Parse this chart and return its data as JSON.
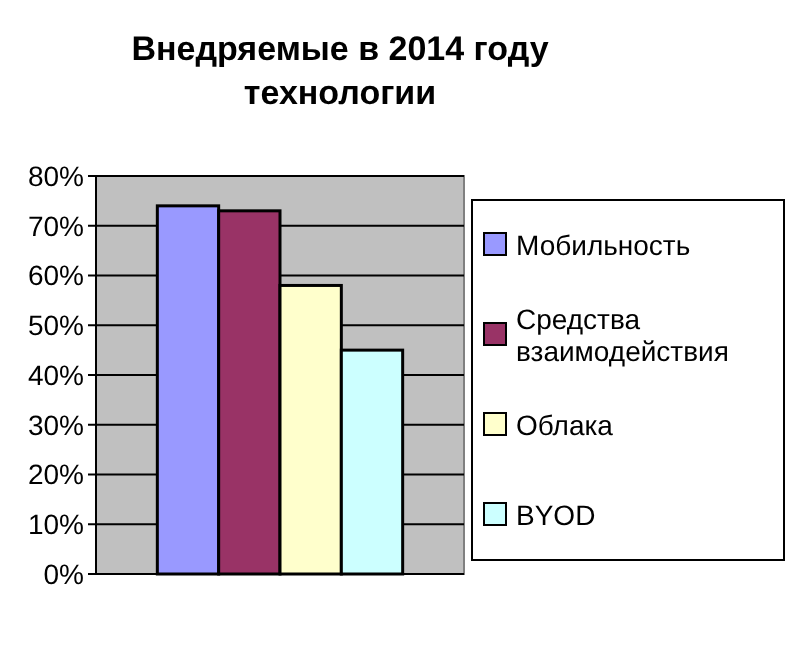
{
  "chart_data": {
    "type": "bar",
    "title": "Внедряемые в 2014 году технологии",
    "categories": [
      null
    ],
    "series": [
      {
        "name": "Мобильность",
        "color": "#9999ff",
        "values": [
          74
        ]
      },
      {
        "name": "Средства взаимодействия",
        "color": "#993366",
        "values": [
          73
        ]
      },
      {
        "name": "Облака",
        "color": "#ffffcc",
        "values": [
          58
        ]
      },
      {
        "name": "BYOD",
        "color": "#ccffff",
        "values": [
          45
        ]
      }
    ],
    "ylim": [
      0,
      80
    ],
    "yticks": [
      {
        "value": 0,
        "label": "0%"
      },
      {
        "value": 10,
        "label": "10%"
      },
      {
        "value": 20,
        "label": "20%"
      },
      {
        "value": 30,
        "label": "30%"
      },
      {
        "value": 40,
        "label": "40%"
      },
      {
        "value": 50,
        "label": "50%"
      },
      {
        "value": 60,
        "label": "60%"
      },
      {
        "value": 70,
        "label": "70%"
      },
      {
        "value": 80,
        "label": "80%"
      }
    ],
    "grid": "y",
    "legend": "right"
  }
}
